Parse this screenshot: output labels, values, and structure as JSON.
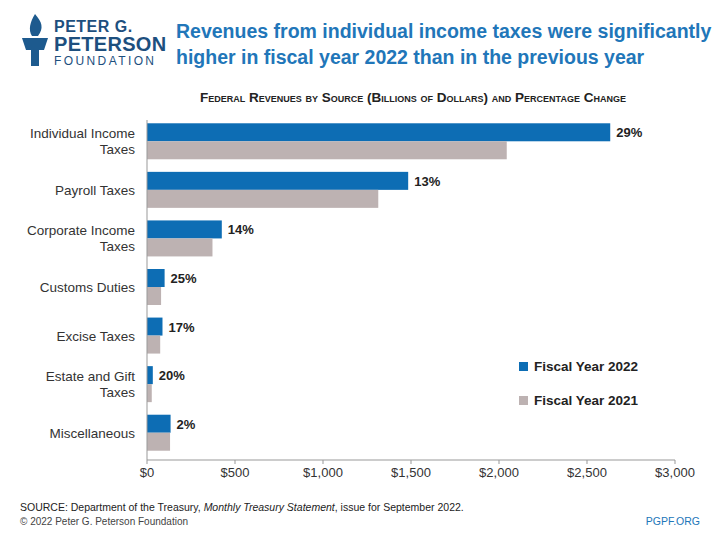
{
  "header": {
    "logo": [
      "PETER G.",
      "PETERSON",
      "FOUNDATION"
    ],
    "title": [
      "Revenues from individual income taxes were significantly",
      "higher in fiscal year 2022 than in the previous year"
    ]
  },
  "chart_data": {
    "type": "bar",
    "orientation": "horizontal",
    "title": "Federal Revenues by Source (Billions of Dollars) and Percentage Change",
    "categories": [
      "Individual Income\nTaxes",
      "Payroll Taxes",
      "Corporate Income\nTaxes",
      "Customs Duties",
      "Excise Taxes",
      "Estate and Gift\nTaxes",
      "Miscellaneous"
    ],
    "series": [
      {
        "name": "Fiscal Year 2022",
        "color": "#0d6db4",
        "values": [
          2632,
          1484,
          425,
          100,
          88,
          33,
          134
        ],
        "change_labels": [
          "29%",
          "13%",
          "14%",
          "25%",
          "17%",
          "20%",
          "2%"
        ]
      },
      {
        "name": "Fiscal Year 2021",
        "color": "#bdb2b2",
        "values": [
          2044,
          1314,
          372,
          80,
          75,
          27,
          131
        ]
      }
    ],
    "xlim": [
      0,
      3000
    ],
    "xticks": [
      {
        "value": 0,
        "label": "$0"
      },
      {
        "value": 500,
        "label": "$500"
      },
      {
        "value": 1000,
        "label": "$1,000"
      },
      {
        "value": 1500,
        "label": "$1,500"
      },
      {
        "value": 2000,
        "label": "$2,000"
      },
      {
        "value": 2500,
        "label": "$2,500"
      },
      {
        "value": 3000,
        "label": "$3,000"
      }
    ],
    "grid": false,
    "legend": "right"
  },
  "footer": {
    "source_prefix": "SOURCE: Department of the Treasury, ",
    "source_title": "Monthly Treasury Statement",
    "source_suffix": ", issue for September 2022.",
    "copyright": "© 2022 Peter G. Peterson Foundation",
    "site": "PGPF.ORG"
  }
}
